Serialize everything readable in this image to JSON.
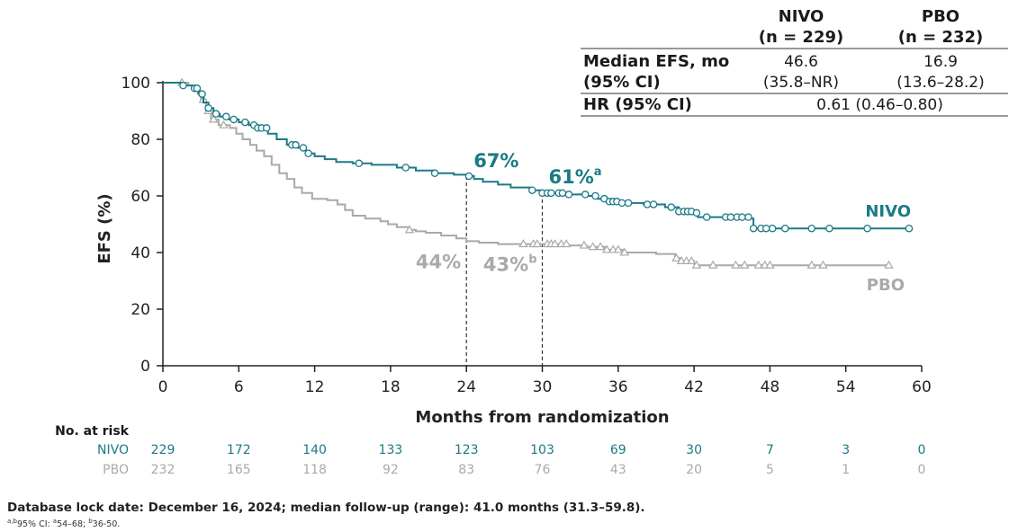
{
  "chart_data": {
    "type": "line",
    "title": "",
    "xlabel": "Months from randomization",
    "ylabel": "EFS (%)",
    "xlim": [
      0,
      60
    ],
    "ylim": [
      0,
      100
    ],
    "x_ticks": [
      "0",
      "6",
      "12",
      "18",
      "24",
      "30",
      "36",
      "42",
      "48",
      "54",
      "60"
    ],
    "y_ticks": [
      "0",
      "20",
      "40",
      "60",
      "80",
      "100"
    ],
    "series": [
      {
        "name": "NIVO",
        "color": "#1a7a86",
        "censor_marker": "circle",
        "points": [
          [
            0,
            100
          ],
          [
            1.5,
            99
          ],
          [
            2.3,
            98
          ],
          [
            2.8,
            96
          ],
          [
            3.2,
            93
          ],
          [
            3.6,
            91
          ],
          [
            4,
            89
          ],
          [
            4.5,
            88
          ],
          [
            5.2,
            87
          ],
          [
            6,
            86
          ],
          [
            6.8,
            85
          ],
          [
            7.5,
            84
          ],
          [
            8.3,
            82
          ],
          [
            9,
            80
          ],
          [
            9.8,
            78
          ],
          [
            10.6,
            77
          ],
          [
            11.3,
            75
          ],
          [
            12,
            74
          ],
          [
            12.8,
            73
          ],
          [
            13.7,
            72
          ],
          [
            15,
            71.5
          ],
          [
            16.5,
            71
          ],
          [
            18.5,
            70
          ],
          [
            20,
            69
          ],
          [
            21.5,
            68
          ],
          [
            23,
            67.5
          ],
          [
            24,
            67
          ],
          [
            24.6,
            66
          ],
          [
            25.3,
            65
          ],
          [
            26.5,
            64
          ],
          [
            27.5,
            63
          ],
          [
            29,
            62
          ],
          [
            30,
            61
          ],
          [
            31,
            61
          ],
          [
            32,
            60.5
          ],
          [
            33.5,
            60
          ],
          [
            34.4,
            59
          ],
          [
            35,
            58
          ],
          [
            36,
            57.5
          ],
          [
            38,
            57
          ],
          [
            39.7,
            56
          ],
          [
            40.8,
            54.5
          ],
          [
            42,
            54
          ],
          [
            42.3,
            52.5
          ],
          [
            46.5,
            52
          ],
          [
            46.7,
            48.5
          ],
          [
            59,
            48.5
          ]
        ],
        "censor_x": [
          1.6,
          2.5,
          2.7,
          3.1,
          3.6,
          4.2,
          5,
          5.6,
          6.5,
          7.2,
          7.5,
          7.8,
          8.2,
          10.2,
          10.5,
          11.1,
          11.5,
          15.5,
          19.2,
          21.5,
          24.2,
          29.2,
          30,
          30.4,
          30.7,
          31.3,
          31.6,
          32.1,
          33.4,
          34.2,
          34.9,
          35.3,
          35.6,
          35.9,
          36.3,
          36.8,
          38.3,
          38.8,
          40.2,
          40.8,
          41.2,
          41.5,
          41.8,
          42.2,
          43,
          44.5,
          44.9,
          45.4,
          45.8,
          46.3,
          46.7,
          47.3,
          47.7,
          48.2,
          49.2,
          51.3,
          52.7,
          55.7,
          59
        ]
      },
      {
        "name": "PBO",
        "color": "#a9a9a9",
        "censor_marker": "triangle",
        "points": [
          [
            0,
            100
          ],
          [
            2,
            99
          ],
          [
            2.6,
            97
          ],
          [
            3,
            94
          ],
          [
            3.4,
            90
          ],
          [
            3.8,
            87
          ],
          [
            4.4,
            85
          ],
          [
            5.3,
            84
          ],
          [
            5.8,
            82
          ],
          [
            6.3,
            80
          ],
          [
            6.9,
            78
          ],
          [
            7.4,
            76
          ],
          [
            8,
            74
          ],
          [
            8.6,
            71
          ],
          [
            9.2,
            68
          ],
          [
            9.8,
            66
          ],
          [
            10.4,
            63
          ],
          [
            11,
            61
          ],
          [
            11.8,
            59
          ],
          [
            13,
            58.5
          ],
          [
            13.8,
            57
          ],
          [
            14.4,
            55
          ],
          [
            15,
            53
          ],
          [
            16,
            52
          ],
          [
            17.2,
            51
          ],
          [
            17.8,
            50
          ],
          [
            18.5,
            49
          ],
          [
            19.5,
            48
          ],
          [
            20,
            47.5
          ],
          [
            20.8,
            47
          ],
          [
            22,
            46
          ],
          [
            23.2,
            45
          ],
          [
            24,
            44
          ],
          [
            25,
            43.5
          ],
          [
            26.5,
            43
          ],
          [
            29,
            43
          ],
          [
            30,
            43
          ],
          [
            32,
            42.5
          ],
          [
            33.5,
            42
          ],
          [
            35,
            41
          ],
          [
            36.5,
            40
          ],
          [
            39,
            39.5
          ],
          [
            40.5,
            38
          ],
          [
            41,
            37
          ],
          [
            42,
            36
          ],
          [
            42.2,
            35.5
          ],
          [
            57.5,
            35.5
          ]
        ],
        "censor_x": [
          1.5,
          3.2,
          3.6,
          4,
          4.8,
          19.5,
          28.5,
          29.3,
          29.6,
          30.4,
          30.7,
          31,
          31.5,
          31.9,
          33.3,
          34,
          34.6,
          35.1,
          35.6,
          36,
          36.5,
          40.6,
          41,
          41.4,
          41.8,
          42.2,
          43.5,
          45.3,
          46,
          47.1,
          47.6,
          48,
          51.3,
          52.2,
          57.4
        ]
      }
    ],
    "landmarks": [
      {
        "x": 24,
        "nivo_label": "67%",
        "pbo_label": "44%",
        "nivo_sup": "",
        "pbo_sup": "",
        "nivo_y": 67,
        "pbo_y": 44
      },
      {
        "x": 30,
        "nivo_label": "61%",
        "pbo_label": "43%",
        "nivo_sup": "a",
        "pbo_sup": "b",
        "nivo_y": 61,
        "pbo_y": 43
      }
    ],
    "series_labels": {
      "nivo": "NIVO",
      "pbo": "PBO"
    },
    "summary_table": {
      "headers": [
        [
          "",
          ""
        ],
        [
          "NIVO",
          "(n = 229)"
        ],
        [
          "PBO",
          "(n = 232)"
        ]
      ],
      "rows": [
        {
          "label": [
            "Median EFS, mo",
            "(95% CI)"
          ],
          "nivo": [
            "46.6",
            "(35.8–NR)"
          ],
          "pbo": [
            "16.9",
            "(13.6–28.2)"
          ]
        },
        {
          "label": [
            "HR (95% CI)"
          ],
          "combined": "0.61 (0.46–0.80)"
        }
      ]
    },
    "risk_table": {
      "title": "No. at risk",
      "times": [
        0,
        6,
        12,
        18,
        24,
        30,
        36,
        42,
        48,
        54,
        60
      ],
      "rows": [
        {
          "label": "NIVO",
          "values": [
            "229",
            "172",
            "140",
            "133",
            "123",
            "103",
            "69",
            "30",
            "7",
            "3",
            "0"
          ]
        },
        {
          "label": "PBO",
          "values": [
            "232",
            "165",
            "118",
            "92",
            "83",
            "76",
            "43",
            "20",
            "5",
            "1",
            "0"
          ]
        }
      ]
    }
  },
  "footnotes": {
    "line1": "Database lock date: December 16, 2024; median follow-up (range): 41.0 months (31.3–59.8).",
    "line2_sup": "a,b",
    "line2": "95% CI: ",
    "line2_a": "a",
    "line2_a_text": "54–68; ",
    "line2_b": "b",
    "line2_b_text": "36-50."
  }
}
